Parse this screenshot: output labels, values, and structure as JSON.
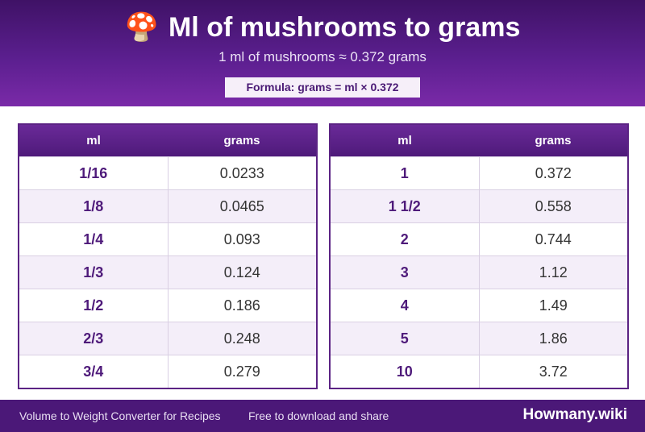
{
  "header": {
    "icon": "🍄",
    "title": "Ml of mushrooms to grams",
    "subtitle": "1 ml of mushrooms ≈ 0.372 grams",
    "formula": "Formula: grams = ml × 0.372"
  },
  "tables": [
    {
      "col1": "ml",
      "col2": "grams",
      "rows": [
        {
          "ml": "1/16",
          "grams": "0.0233"
        },
        {
          "ml": "1/8",
          "grams": "0.0465"
        },
        {
          "ml": "1/4",
          "grams": "0.093"
        },
        {
          "ml": "1/3",
          "grams": "0.124"
        },
        {
          "ml": "1/2",
          "grams": "0.186"
        },
        {
          "ml": "2/3",
          "grams": "0.248"
        },
        {
          "ml": "3/4",
          "grams": "0.279"
        }
      ]
    },
    {
      "col1": "ml",
      "col2": "grams",
      "rows": [
        {
          "ml": "1",
          "grams": "0.372"
        },
        {
          "ml": "1 1/2",
          "grams": "0.558"
        },
        {
          "ml": "2",
          "grams": "0.744"
        },
        {
          "ml": "3",
          "grams": "1.12"
        },
        {
          "ml": "4",
          "grams": "1.49"
        },
        {
          "ml": "5",
          "grams": "1.86"
        },
        {
          "ml": "10",
          "grams": "3.72"
        }
      ]
    }
  ],
  "footer": {
    "left": "Volume to Weight Converter for Recipes",
    "middle": "Free to download and share",
    "brand": "Howmany.wiki"
  }
}
